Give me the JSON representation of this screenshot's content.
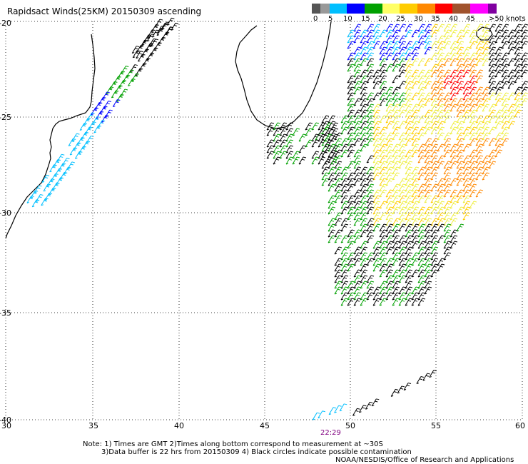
{
  "title": "Rapidsact Winds(25KM) 20150309 ascending",
  "legend": {
    "unit_label": ">50 knots",
    "ticks": [
      "0",
      "5",
      "10",
      "15",
      "20",
      "25",
      "30",
      "35",
      "40",
      "45"
    ],
    "colors": [
      "#555555",
      "#999999",
      "#00bfff",
      "#0000ff",
      "#00a000",
      "#ffff66",
      "#ffcc00",
      "#ff8800",
      "#ff0000",
      "#a0522d",
      "#ff00ff",
      "#8000a0"
    ]
  },
  "lat_labels": [
    "-20",
    "-25",
    "-30",
    "-35",
    "-40"
  ],
  "lon_labels": [
    "30",
    "35",
    "40",
    "45",
    "50",
    "55",
    "60"
  ],
  "time_label": "22:29",
  "notes": [
    "Note: 1) Times are GMT 2)Times along bottom correspond to measurement at ~30S",
    "3)Data buffer is 22 hrs from 20150309 4) Black circles indicate possible contamination",
    "NOAA/NESDIS/Office of Research and Applications"
  ]
}
